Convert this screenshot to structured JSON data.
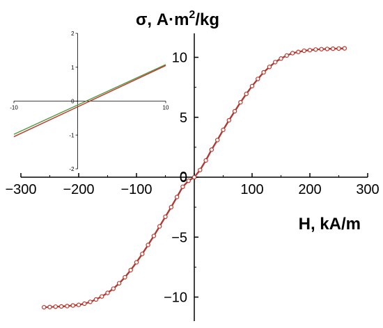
{
  "chart_data": [
    {
      "type": "scatter",
      "title": "",
      "xlabel": "H, kA/m",
      "ylabel": "σ, A·m²/kg",
      "ylabel_parts": {
        "pre": "σ, A·m",
        "sup": "2",
        "post": "/kg"
      },
      "xlim": [
        -300,
        300
      ],
      "ylim": [
        -12,
        12
      ],
      "xticks": [
        -300,
        -200,
        -100,
        0,
        100,
        200,
        300
      ],
      "xtick_labels": [
        "−300",
        "−200",
        "−100",
        "0",
        "100",
        "200",
        "300"
      ],
      "yticks": [
        -10,
        -5,
        0,
        5,
        10
      ],
      "ytick_labels": [
        "−10",
        "−5",
        "0",
        "5",
        "10"
      ],
      "grid": false,
      "colors": {
        "curve": "#c0352b",
        "marker_stroke": "#c0352b",
        "marker_fill": "#ffffff",
        "fit": "#1a1a1a",
        "axis": "#000000"
      },
      "series": [
        {
          "x": [
            -260,
            -250,
            -240,
            -230,
            -220,
            -210,
            -200,
            -190,
            -180,
            -170,
            -160,
            -150,
            -140,
            -130,
            -120,
            -110,
            -100,
            -90,
            -80,
            -70,
            -60,
            -50,
            -40,
            -30,
            -20,
            -10,
            0,
            10,
            20,
            30,
            40,
            50,
            60,
            70,
            80,
            90,
            100,
            110,
            120,
            130,
            140,
            150,
            160,
            170,
            180,
            190,
            200,
            210,
            220,
            230,
            240,
            250,
            260
          ],
          "y": [
            -10.85,
            -10.83,
            -10.8,
            -10.78,
            -10.75,
            -10.7,
            -10.65,
            -10.55,
            -10.4,
            -10.2,
            -9.95,
            -9.65,
            -9.3,
            -8.85,
            -8.35,
            -7.75,
            -7.1,
            -6.4,
            -5.65,
            -4.9,
            -4.1,
            -3.3,
            -2.5,
            -1.65,
            -0.8,
            -0.3,
            0.0,
            0.6,
            1.4,
            2.3,
            3.1,
            3.95,
            4.75,
            5.5,
            6.25,
            6.95,
            7.6,
            8.2,
            8.75,
            9.2,
            9.6,
            9.9,
            10.15,
            10.35,
            10.45,
            10.55,
            10.6,
            10.65,
            10.68,
            10.7,
            10.72,
            10.73,
            10.75
          ]
        }
      ]
    },
    {
      "type": "line",
      "title": "",
      "xlim": [
        -10,
        10
      ],
      "ylim": [
        -2,
        2
      ],
      "xticks": [
        -10,
        10
      ],
      "xtick_labels": [
        "-10",
        "10"
      ],
      "yticks": [
        -2,
        -1,
        0,
        1,
        2
      ],
      "ytick_labels": [
        "-2",
        "-1",
        "0",
        "1",
        "2"
      ],
      "grid": false,
      "colors": {
        "line_a": "#c0352b",
        "line_b": "#4a9a3a",
        "axis": "#000000"
      },
      "series": [
        {
          "x": [
            -10,
            10
          ],
          "y": [
            -1.05,
            1.05
          ]
        },
        {
          "x": [
            -10,
            10
          ],
          "y": [
            -0.98,
            1.08
          ]
        }
      ]
    }
  ]
}
